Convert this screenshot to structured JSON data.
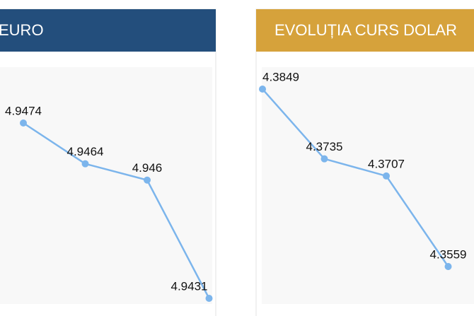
{
  "chart_data": [
    {
      "type": "line",
      "title": "EURO",
      "header_color": "#234e7c",
      "color": "#7cb5ec",
      "categories": [
        null,
        null,
        null,
        null
      ],
      "values": [
        4.9474,
        4.9464,
        4.946,
        4.9431
      ]
    },
    {
      "type": "line",
      "title": "EVOLUȚIA CURS DOLAR",
      "header_color": "#d6a23b",
      "color": "#7cb5ec",
      "categories": [
        null,
        null,
        null,
        null
      ],
      "values": [
        4.3849,
        4.3735,
        4.3707,
        4.3559
      ]
    }
  ]
}
